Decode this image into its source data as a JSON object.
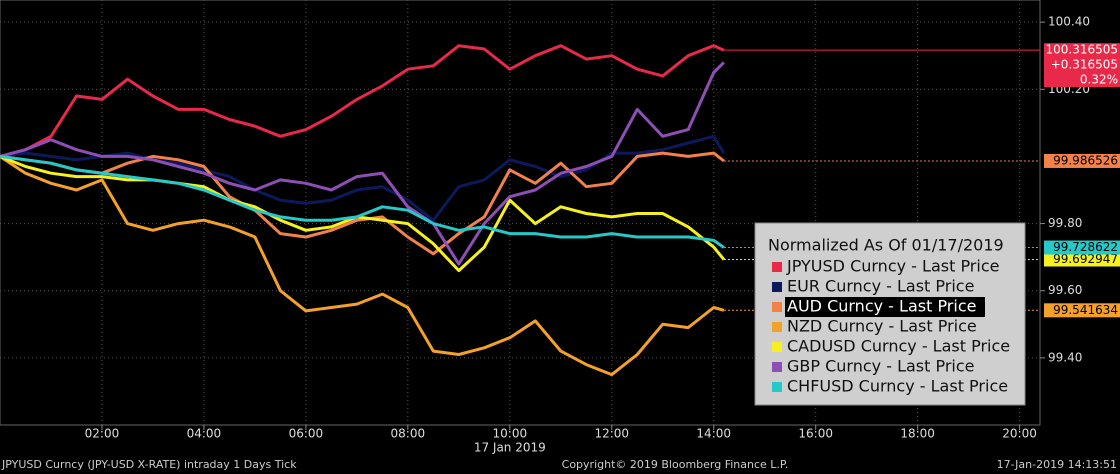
{
  "chart_data": {
    "type": "line",
    "x": [
      0,
      0.5,
      1,
      1.5,
      2,
      2.5,
      3,
      3.5,
      4,
      4.5,
      5,
      5.5,
      6,
      6.5,
      7,
      7.5,
      8,
      8.5,
      9,
      9.5,
      10,
      10.5,
      11,
      11.5,
      12,
      12.5,
      13,
      13.5,
      14,
      14.2
    ],
    "xlim": [
      0,
      20.4
    ],
    "xticks": [
      {
        "value": 2,
        "label": "02:00"
      },
      {
        "value": 4,
        "label": "04:00"
      },
      {
        "value": 6,
        "label": "06:00"
      },
      {
        "value": 8,
        "label": "08:00"
      },
      {
        "value": 10,
        "label": "10:00"
      },
      {
        "value": 12,
        "label": "12:00"
      },
      {
        "value": 14,
        "label": "14:00"
      },
      {
        "value": 16,
        "label": "16:00"
      },
      {
        "value": 18,
        "label": "18:00"
      },
      {
        "value": 20,
        "label": "20:00"
      }
    ],
    "x_sublabel": "17 Jan 2019",
    "ylim": [
      99.2,
      100.466
    ],
    "yticks": [
      {
        "value": 99.4,
        "label": "99.40"
      },
      {
        "value": 99.6,
        "label": "99.60"
      },
      {
        "value": 99.8,
        "label": "99.80"
      },
      {
        "value": 100.2,
        "label": "100.20"
      },
      {
        "value": 100.4,
        "label": "100.40"
      }
    ],
    "grid": true,
    "legend_title": "Normalized As Of 01/17/2019",
    "change_labels": [
      "+0.316505",
      "0.32%"
    ],
    "series": [
      {
        "name": "JPYUSD Curncy - Last Price",
        "color": "#e8294a",
        "last_label": true,
        "values": [
          100.0,
          100.02,
          100.06,
          100.18,
          100.17,
          100.23,
          100.18,
          100.14,
          100.14,
          100.11,
          100.09,
          100.06,
          100.08,
          100.12,
          100.17,
          100.21,
          100.26,
          100.27,
          100.33,
          100.32,
          100.26,
          100.3,
          100.33,
          100.29,
          100.3,
          100.26,
          100.24,
          100.3,
          100.33,
          100.316505
        ]
      },
      {
        "name": "EUR Curncy - Last Price",
        "color": "#0c1a5c",
        "last_label": false,
        "values": [
          100.0,
          100.01,
          100.0,
          99.99,
          100.0,
          100.01,
          99.99,
          99.98,
          99.96,
          99.94,
          99.9,
          99.87,
          99.86,
          99.87,
          99.9,
          99.91,
          99.87,
          99.81,
          99.91,
          99.93,
          99.99,
          99.97,
          99.94,
          99.96,
          100.01,
          100.01,
          100.02,
          100.04,
          100.06,
          100.01
        ]
      },
      {
        "name": "AUD Curncy - Last Price",
        "color": "#f2814a",
        "last_label": true,
        "values": [
          100.0,
          99.99,
          99.98,
          99.96,
          99.95,
          99.98,
          100.0,
          99.99,
          99.97,
          99.88,
          99.84,
          99.77,
          99.76,
          99.78,
          99.81,
          99.82,
          99.76,
          99.71,
          99.77,
          99.82,
          99.96,
          99.92,
          99.98,
          99.91,
          99.92,
          100.0,
          100.01,
          100.0,
          100.01,
          99.986526
        ]
      },
      {
        "name": "NZD Curncy - Last Price",
        "color": "#f4a12b",
        "last_label": true,
        "values": [
          100.0,
          99.95,
          99.92,
          99.9,
          99.93,
          99.8,
          99.78,
          99.8,
          99.81,
          99.79,
          99.76,
          99.6,
          99.54,
          99.55,
          99.56,
          99.59,
          99.55,
          99.42,
          99.41,
          99.43,
          99.46,
          99.51,
          99.42,
          99.38,
          99.35,
          99.41,
          99.5,
          99.49,
          99.55,
          99.541634
        ]
      },
      {
        "name": "CADUSD Curncy - Last Price",
        "color": "#f5f01e",
        "last_label": true,
        "values": [
          100.0,
          99.97,
          99.95,
          99.94,
          99.94,
          99.93,
          99.93,
          99.92,
          99.91,
          99.87,
          99.85,
          99.81,
          99.78,
          99.79,
          99.82,
          99.81,
          99.8,
          99.74,
          99.66,
          99.73,
          99.87,
          99.8,
          99.85,
          99.83,
          99.82,
          99.83,
          99.83,
          99.79,
          99.73,
          99.692947
        ]
      },
      {
        "name": "GBP Curncy - Last Price",
        "color": "#8e4fb5",
        "last_label": false,
        "values": [
          100.0,
          100.02,
          100.05,
          100.02,
          100.0,
          100.0,
          99.99,
          99.97,
          99.95,
          99.92,
          99.9,
          99.93,
          99.92,
          99.9,
          99.94,
          99.95,
          99.85,
          99.8,
          99.68,
          99.8,
          99.88,
          99.9,
          99.95,
          99.97,
          100.0,
          100.14,
          100.06,
          100.08,
          100.25,
          100.28
        ]
      },
      {
        "name": "CHFUSD Curncy - Last Price",
        "color": "#27c8c8",
        "last_label": true,
        "values": [
          100.0,
          99.99,
          99.98,
          99.96,
          99.95,
          99.94,
          99.93,
          99.92,
          99.9,
          99.87,
          99.84,
          99.82,
          99.81,
          99.81,
          99.82,
          99.85,
          99.84,
          99.8,
          99.78,
          99.79,
          99.77,
          99.77,
          99.76,
          99.76,
          99.77,
          99.76,
          99.76,
          99.76,
          99.75,
          99.728622
        ]
      }
    ]
  },
  "footer": {
    "left": "JPYUSD Curncy (JPY-USD X-RATE) intraday 1 Days  Tick",
    "center": "Copyright© 2019 Bloomberg Finance L.P.",
    "right": "17-Jan-2019 14:13:51"
  }
}
